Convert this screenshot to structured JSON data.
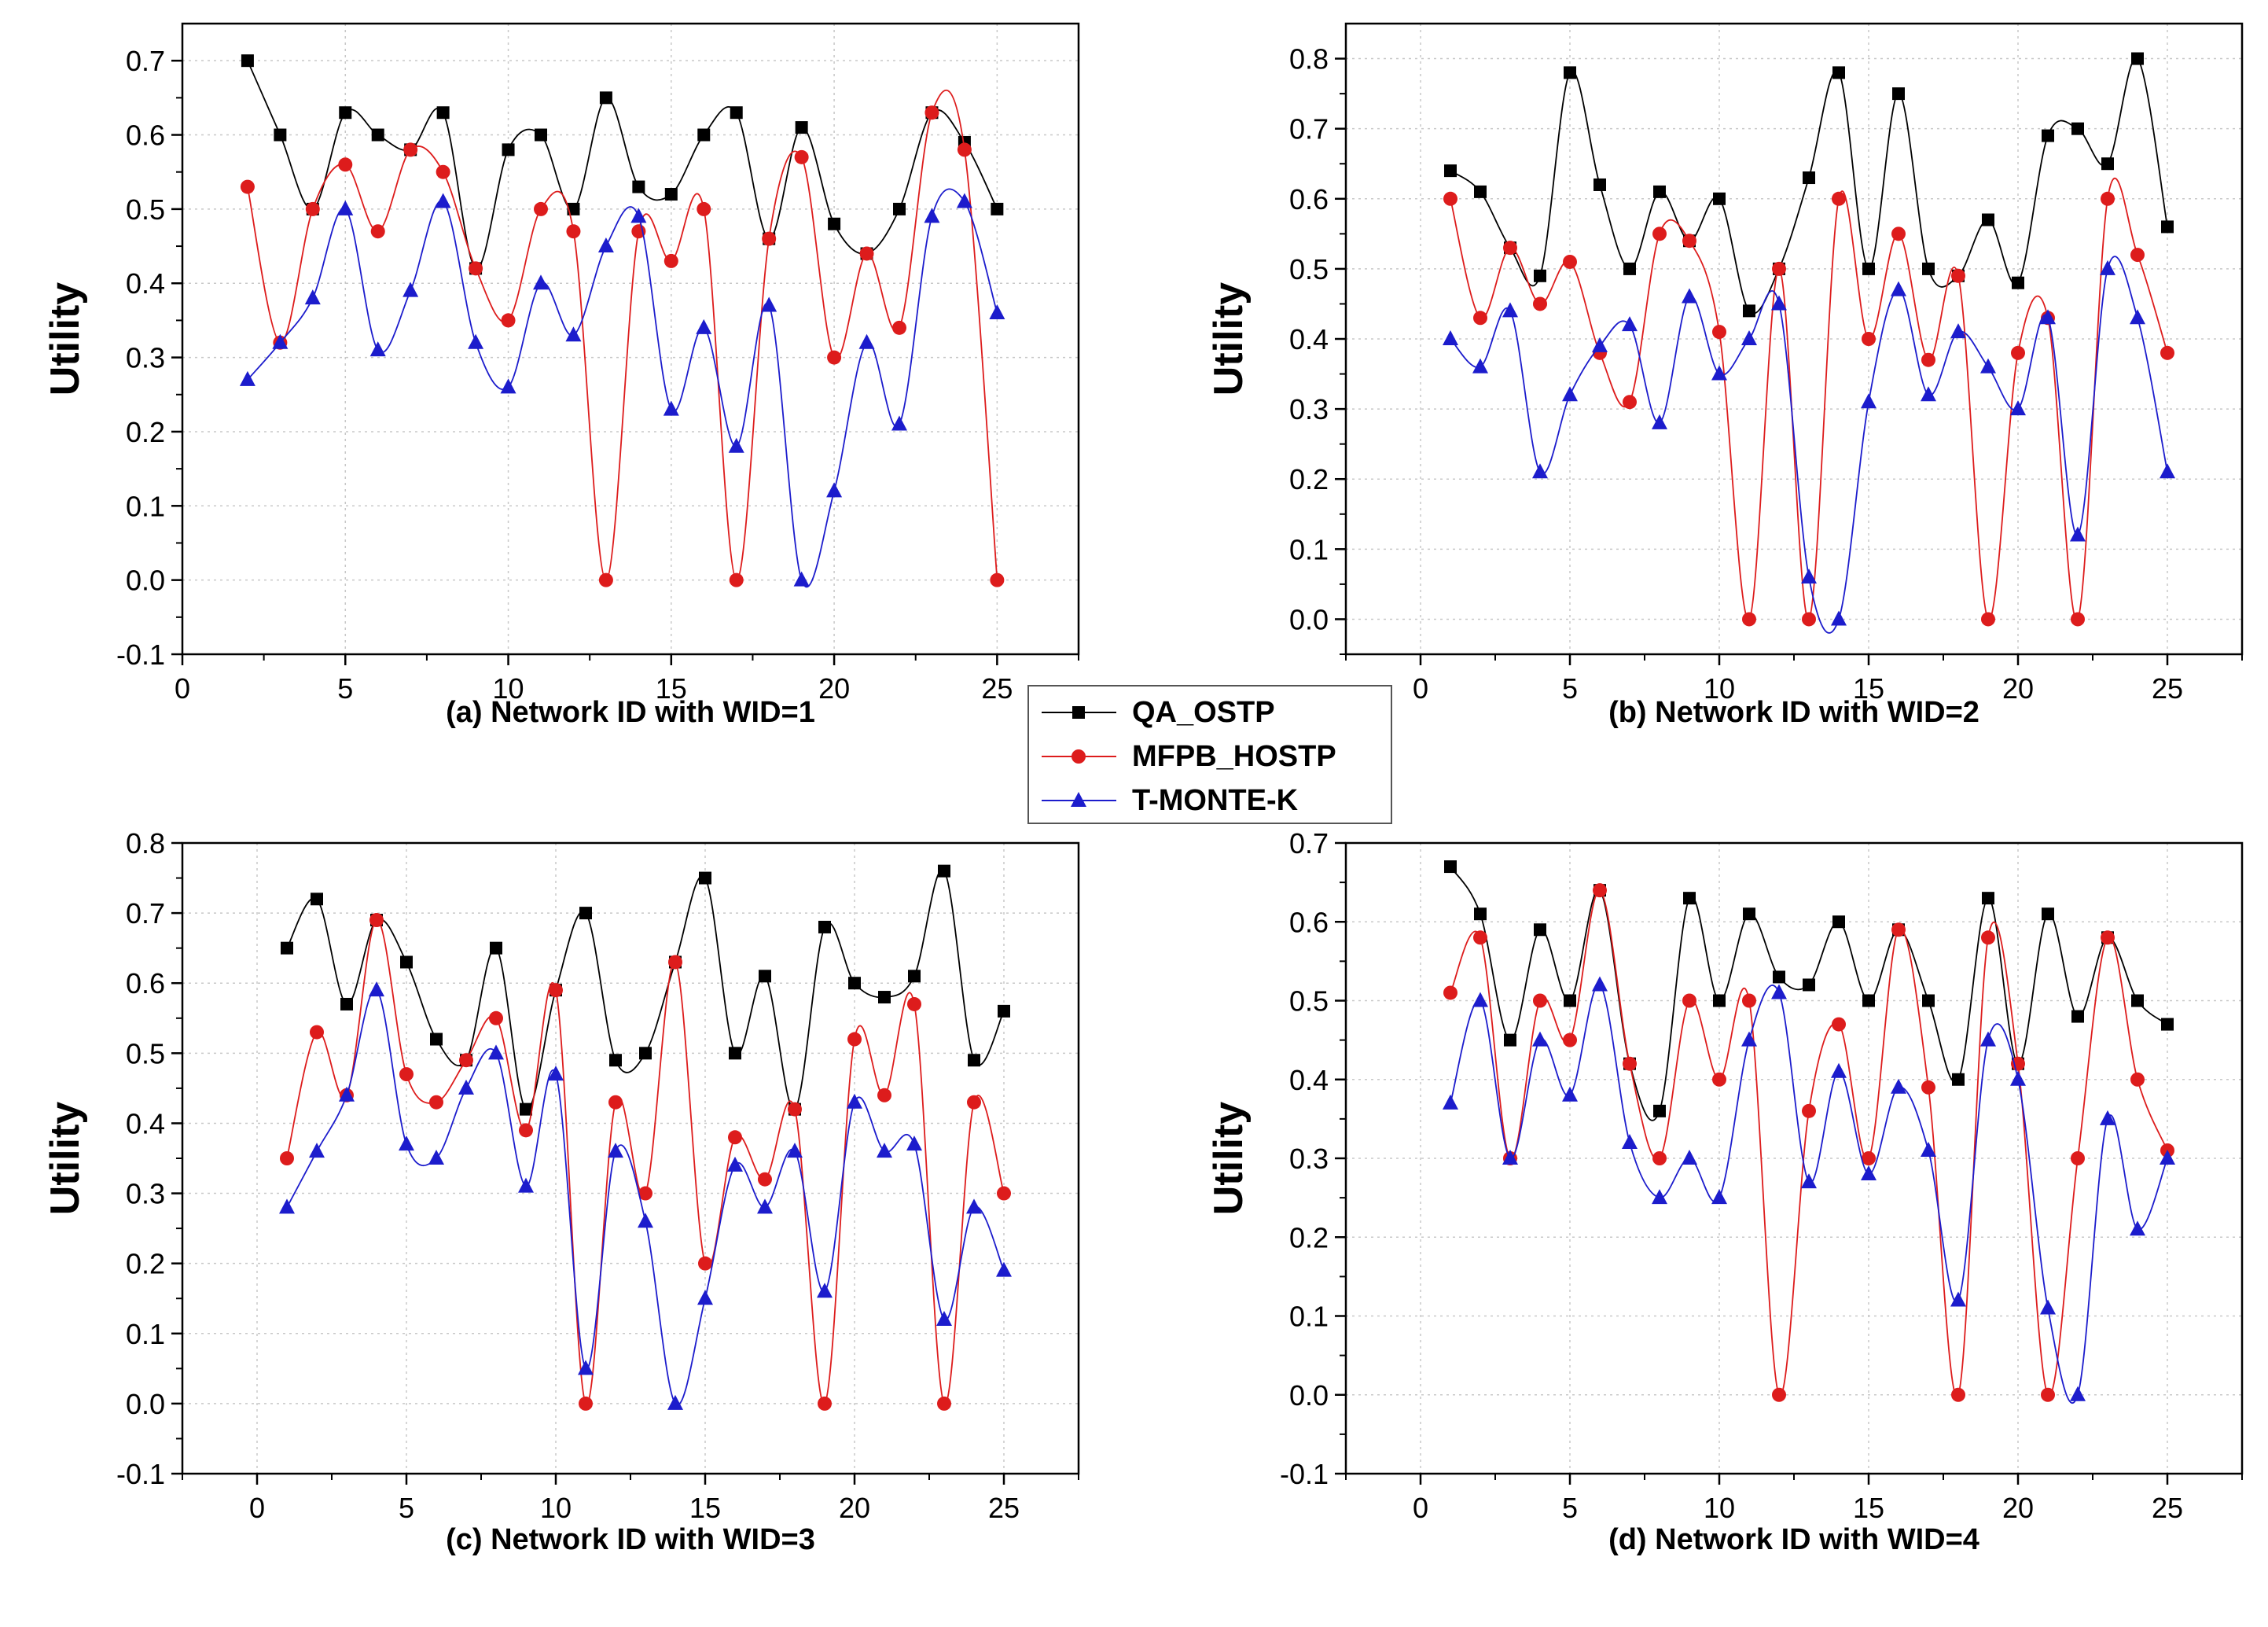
{
  "legend": {
    "entries": [
      {
        "name": "QA_OSTP",
        "color": "#000000",
        "marker": "square"
      },
      {
        "name": "MFPB_HOSTP",
        "color": "#dd1c1c",
        "marker": "circle"
      },
      {
        "name": "T-MONTE-K",
        "color": "#1c1ccc",
        "marker": "triangle"
      }
    ]
  },
  "chart_data": [
    {
      "type": "line",
      "title": "(a) Network ID with WID=1",
      "xlabel": "(a) Network ID with WID=1",
      "ylabel": "Utility",
      "xlim": [
        0,
        27.5
      ],
      "ylim": [
        -0.1,
        0.75
      ],
      "xticks": [
        0,
        5,
        10,
        15,
        20,
        25
      ],
      "xtick_labels": [
        "0",
        "5",
        "10",
        "15",
        "20",
        "25"
      ],
      "yticks": [
        -0.1,
        0.0,
        0.1,
        0.2,
        0.3,
        0.4,
        0.5,
        0.6,
        0.7
      ],
      "ytick_labels": [
        "-0.1",
        "0.0",
        "0.1",
        "0.2",
        "0.3",
        "0.4",
        "0.5",
        "0.6",
        "0.7"
      ],
      "grid": true,
      "x": [
        2,
        3,
        4,
        5,
        6,
        7,
        8,
        9,
        10,
        11,
        12,
        13,
        14,
        15,
        16,
        17,
        18,
        19,
        20,
        21,
        22,
        23,
        24,
        25
      ],
      "series": [
        {
          "name": "QA_OSTP",
          "values": [
            0.7,
            0.6,
            0.5,
            0.63,
            0.6,
            0.58,
            0.63,
            0.42,
            0.58,
            0.6,
            0.5,
            0.65,
            0.53,
            0.52,
            0.6,
            0.63,
            0.46,
            0.61,
            0.48,
            0.44,
            0.5,
            0.63,
            0.59,
            0.5
          ]
        },
        {
          "name": "MFPB_HOSTP",
          "values": [
            0.53,
            0.32,
            0.5,
            0.56,
            0.47,
            0.58,
            0.55,
            0.42,
            0.35,
            0.5,
            0.47,
            0.0,
            0.47,
            0.43,
            0.5,
            0.0,
            0.46,
            0.57,
            0.3,
            0.44,
            0.34,
            0.63,
            0.58,
            0.0
          ]
        },
        {
          "name": "T-MONTE-K",
          "values": [
            0.27,
            0.32,
            0.38,
            0.5,
            0.31,
            0.39,
            0.51,
            0.32,
            0.26,
            0.4,
            0.33,
            0.45,
            0.49,
            0.23,
            0.34,
            0.18,
            0.37,
            0.0,
            0.12,
            0.32,
            0.21,
            0.49,
            0.51,
            0.36
          ]
        }
      ]
    },
    {
      "type": "line",
      "title": "(b) Network ID with WID=2",
      "xlabel": "(b) Network ID with WID=2",
      "ylabel": "Utility",
      "xlim": [
        -2.5,
        27.5
      ],
      "ylim": [
        -0.05,
        0.85
      ],
      "xticks": [
        0,
        5,
        10,
        15,
        20,
        25
      ],
      "xtick_labels": [
        "0",
        "5",
        "10",
        "15",
        "20",
        "25"
      ],
      "yticks": [
        0.0,
        0.1,
        0.2,
        0.3,
        0.4,
        0.5,
        0.6,
        0.7,
        0.8
      ],
      "ytick_labels": [
        "0.0",
        "0.1",
        "0.2",
        "0.3",
        "0.4",
        "0.5",
        "0.6",
        "0.7",
        "0.8"
      ],
      "grid": true,
      "x": [
        1,
        2,
        3,
        4,
        5,
        6,
        7,
        8,
        9,
        10,
        11,
        12,
        13,
        14,
        15,
        16,
        17,
        18,
        19,
        20,
        21,
        22,
        23,
        24,
        25
      ],
      "series": [
        {
          "name": "QA_OSTP",
          "values": [
            0.64,
            0.61,
            0.53,
            0.49,
            0.78,
            0.62,
            0.5,
            0.61,
            0.54,
            0.6,
            0.44,
            0.5,
            0.63,
            0.78,
            0.5,
            0.75,
            0.5,
            0.49,
            0.57,
            0.48,
            0.69,
            0.7,
            0.65,
            0.8,
            0.56
          ]
        },
        {
          "name": "MFPB_HOSTP",
          "values": [
            0.6,
            0.43,
            0.53,
            0.45,
            0.51,
            0.38,
            0.31,
            0.55,
            0.54,
            0.41,
            0.0,
            0.5,
            0.0,
            0.6,
            0.4,
            0.55,
            0.37,
            0.49,
            0.0,
            0.38,
            0.43,
            0.0,
            0.6,
            0.52,
            0.38
          ]
        },
        {
          "name": "T-MONTE-K",
          "values": [
            0.4,
            0.36,
            0.44,
            0.21,
            0.32,
            0.39,
            0.42,
            0.28,
            0.46,
            0.35,
            0.4,
            0.45,
            0.06,
            0.0,
            0.31,
            0.47,
            0.32,
            0.41,
            0.36,
            0.3,
            0.43,
            0.12,
            0.5,
            0.43,
            0.21
          ]
        }
      ]
    },
    {
      "type": "line",
      "title": "(c) Network ID with WID=3",
      "xlabel": "(c) Network ID with WID=3",
      "ylabel": "Utility",
      "xlim": [
        -2.5,
        27.5
      ],
      "ylim": [
        -0.1,
        0.8
      ],
      "xticks": [
        0,
        5,
        10,
        15,
        20,
        25
      ],
      "xtick_labels": [
        "0",
        "5",
        "10",
        "15",
        "20",
        "25"
      ],
      "yticks": [
        -0.1,
        0.0,
        0.1,
        0.2,
        0.3,
        0.4,
        0.5,
        0.6,
        0.7,
        0.8
      ],
      "ytick_labels": [
        "-0.1",
        "0.0",
        "0.1",
        "0.2",
        "0.3",
        "0.4",
        "0.5",
        "0.6",
        "0.7",
        "0.8"
      ],
      "grid": true,
      "x": [
        1,
        2,
        3,
        4,
        5,
        6,
        7,
        8,
        9,
        10,
        11,
        12,
        13,
        14,
        15,
        16,
        17,
        18,
        19,
        20,
        21,
        22,
        23,
        24,
        25
      ],
      "series": [
        {
          "name": "QA_OSTP",
          "values": [
            0.65,
            0.72,
            0.57,
            0.69,
            0.63,
            0.52,
            0.49,
            0.65,
            0.42,
            0.59,
            0.7,
            0.49,
            0.5,
            0.63,
            0.75,
            0.5,
            0.61,
            0.42,
            0.68,
            0.6,
            0.58,
            0.61,
            0.76,
            0.49,
            0.56
          ]
        },
        {
          "name": "MFPB_HOSTP",
          "values": [
            0.35,
            0.53,
            0.44,
            0.69,
            0.47,
            0.43,
            0.49,
            0.55,
            0.39,
            0.59,
            0.0,
            0.43,
            0.3,
            0.63,
            0.2,
            0.38,
            0.32,
            0.42,
            0.0,
            0.52,
            0.44,
            0.57,
            0.0,
            0.43,
            0.3
          ]
        },
        {
          "name": "T-MONTE-K",
          "values": [
            0.28,
            0.36,
            0.44,
            0.59,
            0.37,
            0.35,
            0.45,
            0.5,
            0.31,
            0.47,
            0.05,
            0.36,
            0.26,
            0.0,
            0.15,
            0.34,
            0.28,
            0.36,
            0.16,
            0.43,
            0.36,
            0.37,
            0.12,
            0.28,
            0.19
          ]
        }
      ]
    },
    {
      "type": "line",
      "title": "(d) Network ID with WID=4",
      "xlabel": "(d) Network ID with WID=4",
      "ylabel": "Utility",
      "xlim": [
        -2.5,
        27.5
      ],
      "ylim": [
        -0.1,
        0.7
      ],
      "xticks": [
        0,
        5,
        10,
        15,
        20,
        25
      ],
      "xtick_labels": [
        "0",
        "5",
        "10",
        "15",
        "20",
        "25"
      ],
      "yticks": [
        -0.1,
        0.0,
        0.1,
        0.2,
        0.3,
        0.4,
        0.5,
        0.6,
        0.7
      ],
      "ytick_labels": [
        "-0.1",
        "0.0",
        "0.1",
        "0.2",
        "0.3",
        "0.4",
        "0.5",
        "0.6",
        "0.7"
      ],
      "grid": true,
      "x": [
        1,
        2,
        3,
        4,
        5,
        6,
        7,
        8,
        9,
        10,
        11,
        12,
        13,
        14,
        15,
        16,
        17,
        18,
        19,
        20,
        21,
        22,
        23,
        24,
        25
      ],
      "series": [
        {
          "name": "QA_OSTP",
          "values": [
            0.67,
            0.61,
            0.45,
            0.59,
            0.5,
            0.64,
            0.42,
            0.36,
            0.63,
            0.5,
            0.61,
            0.53,
            0.52,
            0.6,
            0.5,
            0.59,
            0.5,
            0.4,
            0.63,
            0.42,
            0.61,
            0.48,
            0.58,
            0.5,
            0.47
          ]
        },
        {
          "name": "MFPB_HOSTP",
          "values": [
            0.51,
            0.58,
            0.3,
            0.5,
            0.45,
            0.64,
            0.42,
            0.3,
            0.5,
            0.4,
            0.5,
            0.0,
            0.36,
            0.47,
            0.3,
            0.59,
            0.39,
            0.0,
            0.58,
            0.42,
            0.0,
            0.3,
            0.58,
            0.4,
            0.31
          ]
        },
        {
          "name": "T-MONTE-K",
          "values": [
            0.37,
            0.5,
            0.3,
            0.45,
            0.38,
            0.52,
            0.32,
            0.25,
            0.3,
            0.25,
            0.45,
            0.51,
            0.27,
            0.41,
            0.28,
            0.39,
            0.31,
            0.12,
            0.45,
            0.4,
            0.11,
            0.0,
            0.35,
            0.21,
            0.3
          ]
        }
      ]
    }
  ]
}
